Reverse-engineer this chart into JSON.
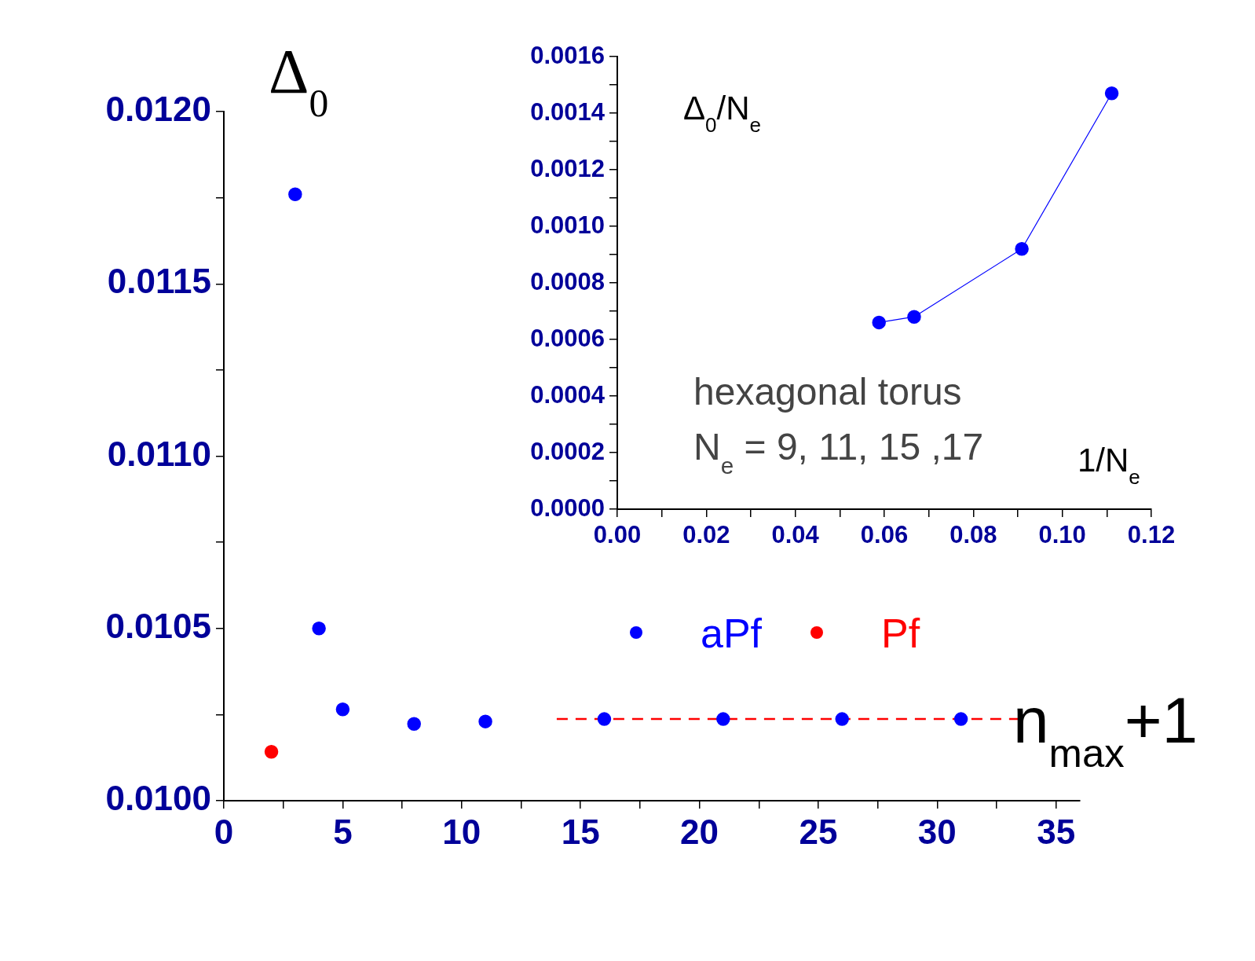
{
  "chart_data": [
    {
      "type": "scatter",
      "xlabel": "n$_{max}$+1",
      "ylabel": "Δ$_{0}$",
      "xlim": [
        0,
        36
      ],
      "ylim": [
        0.01,
        0.012
      ],
      "xticks": [
        0,
        {
          "value": 2.5,
          "label": null
        },
        5,
        {
          "value": 7.5,
          "label": null
        },
        10,
        {
          "value": 12.5,
          "label": null
        },
        15,
        {
          "value": 17.5,
          "label": null
        },
        20,
        {
          "value": 22.5,
          "label": null
        },
        25,
        {
          "value": 27.5,
          "label": null
        },
        30,
        {
          "value": 32.5,
          "label": null
        },
        35
      ],
      "yticks": [
        {
          "value": 0.01,
          "label": "0.0100"
        },
        {
          "value": 0.01025,
          "label": null
        },
        {
          "value": 0.0105,
          "label": "0.0105"
        },
        {
          "value": 0.01075,
          "label": null
        },
        {
          "value": 0.011,
          "label": "0.0110"
        },
        {
          "value": 0.01125,
          "label": null
        },
        {
          "value": 0.0115,
          "label": "0.0115"
        },
        {
          "value": 0.01175,
          "label": null
        },
        {
          "value": 0.012,
          "label": "0.0120"
        }
      ],
      "grid": false,
      "legend": "right",
      "marker": "circle",
      "series": [
        {
          "name": "aPf",
          "color": "#0000ff",
          "x": [
            3,
            4,
            5,
            8,
            11,
            16,
            21,
            26,
            31
          ],
          "values": [
            0.01176,
            0.0105,
            0.010265,
            0.010223,
            0.01023,
            0.010237,
            0.010237,
            0.010237,
            0.010237
          ]
        },
        {
          "name": "Pf",
          "color": "#ff0000",
          "x": [
            2
          ],
          "values": [
            0.010142
          ]
        },
        {
          "type": "line",
          "color": "#ff0000",
          "x": [
            14,
            33.5
          ],
          "values": [
            0.010237,
            0.010237
          ],
          "line_style": "dashed",
          "marker": "none"
        }
      ]
    },
    {
      "type": "line",
      "xlabel": "1/N$_{e}$",
      "ylabel": "Δ$_{0}$/N$_{e}$",
      "xlim": [
        0,
        0.12
      ],
      "ylim": [
        0,
        0.0016
      ],
      "xticks": [
        {
          "value": 0,
          "label": "0.00"
        },
        {
          "value": 0.01,
          "label": null
        },
        {
          "value": 0.02,
          "label": "0.02"
        },
        {
          "value": 0.03,
          "label": null
        },
        {
          "value": 0.04,
          "label": "0.04"
        },
        {
          "value": 0.05,
          "label": null
        },
        {
          "value": 0.06,
          "label": "0.06"
        },
        {
          "value": 0.07,
          "label": null
        },
        {
          "value": 0.08,
          "label": "0.08"
        },
        {
          "value": 0.09,
          "label": null
        },
        {
          "value": 0.1,
          "label": "0.10"
        },
        {
          "value": 0.11,
          "label": null
        },
        {
          "value": 0.12,
          "label": "0.12"
        }
      ],
      "yticks": [
        {
          "value": 0,
          "label": "0.0000"
        },
        {
          "value": 0.0001,
          "label": null
        },
        {
          "value": 0.0002,
          "label": "0.0002"
        },
        {
          "value": 0.0003,
          "label": null
        },
        {
          "value": 0.0004,
          "label": "0.0004"
        },
        {
          "value": 0.0005,
          "label": null
        },
        {
          "value": 0.0006,
          "label": "0.0006"
        },
        {
          "value": 0.0007,
          "label": null
        },
        {
          "value": 0.0008,
          "label": "0.0008"
        },
        {
          "value": 0.0009,
          "label": null
        },
        {
          "value": 0.001,
          "label": "0.0010"
        },
        {
          "value": 0.0011,
          "label": null
        },
        {
          "value": 0.0012,
          "label": "0.0012"
        },
        {
          "value": 0.0013,
          "label": null
        },
        {
          "value": 0.0014,
          "label": "0.0014"
        },
        {
          "value": 0.0015,
          "label": null
        },
        {
          "value": 0.0016,
          "label": "0.0016"
        }
      ],
      "grid": false,
      "marker": "circle",
      "annotations": [
        "hexagonal torus",
        "N$_{e}$ = 9, 11, 15 ,17"
      ],
      "series": [
        {
          "color": "#0000ff",
          "x": [
            0.0588,
            0.0667,
            0.0909,
            0.1111
          ],
          "values": [
            0.00066,
            0.00068,
            0.00092,
            0.00147
          ]
        }
      ]
    }
  ]
}
